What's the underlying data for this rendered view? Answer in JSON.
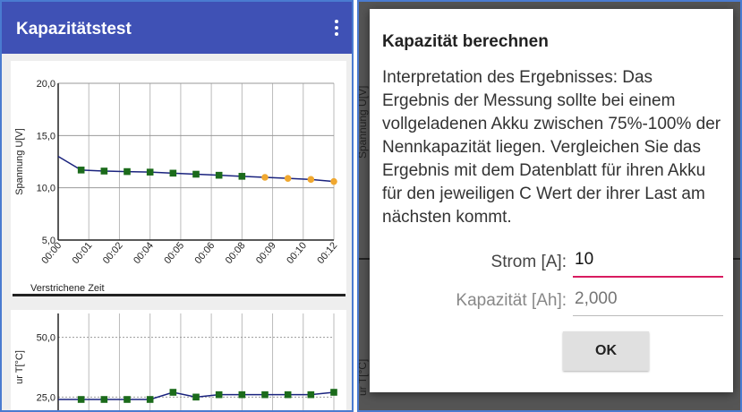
{
  "app": {
    "title": "Kapazitätstest",
    "menu_icon": "more-vert-icon"
  },
  "chart_data": [
    {
      "type": "line",
      "title": "",
      "xlabel": "Verstrichene Zeit",
      "ylabel": "Spannung U[V]",
      "ylim": [
        5,
        20
      ],
      "yticks": [
        "20,0",
        "15,0",
        "10,0",
        "5,0"
      ],
      "categories": [
        "00:00",
        "00:01",
        "00:02",
        "00:04",
        "00:05",
        "00:06",
        "00:08",
        "00:09",
        "00:10",
        "00:12"
      ],
      "x": [
        0,
        0.75,
        1.5,
        2.25,
        3.0,
        3.75,
        4.5,
        5.25,
        6.0,
        6.75,
        7.5,
        8.25,
        9.0
      ],
      "y": [
        13.0,
        11.7,
        11.6,
        11.55,
        11.5,
        11.4,
        11.3,
        11.2,
        11.1,
        11.0,
        10.9,
        10.8,
        10.6
      ],
      "point_colors": [
        "none",
        "#1b6b1b",
        "#1b6b1b",
        "#1b6b1b",
        "#1b6b1b",
        "#1b6b1b",
        "#1b6b1b",
        "#1b6b1b",
        "#1b6b1b",
        "#f0a830",
        "#f0a830",
        "#f0a830",
        "#f0a830"
      ],
      "line_color": "#1a237e",
      "grid": true
    },
    {
      "type": "line",
      "title": "",
      "xlabel": "",
      "ylabel": "ur T[°C]",
      "ylim": [
        15,
        60
      ],
      "yticks": [
        "50,0",
        "25,0"
      ],
      "x": [
        0,
        0.75,
        1.5,
        2.25,
        3.0,
        3.75,
        4.5,
        5.25,
        6.0,
        6.75,
        7.5,
        8.25,
        9.0
      ],
      "y": [
        24,
        24,
        24,
        24,
        24,
        27,
        25,
        26,
        26,
        26,
        26,
        26,
        27
      ],
      "point_colors": [
        "none",
        "#1b6b1b",
        "#1b6b1b",
        "#1b6b1b",
        "#1b6b1b",
        "#1b6b1b",
        "#1b6b1b",
        "#1b6b1b",
        "#1b6b1b",
        "#1b6b1b",
        "#1b6b1b",
        "#1b6b1b",
        "#1b6b1b"
      ],
      "line_color": "#1a237e",
      "grid": true
    }
  ],
  "background": {
    "ylabel": "Spannung U[V]",
    "ylabel2": "ur T[°C]"
  },
  "dialog": {
    "title": "Kapazität berechnen",
    "message": "Interpretation des Ergebnisses: Das Ergebnis der Messung sollte bei einem vollgeladenen Akku zwischen 75%-100% der Nennkapazität liegen. Vergleichen Sie das Ergebnis mit dem Datenblatt für ihren Akku für den jeweiligen C Wert der ihrer Last am nächsten kommt.",
    "strom_label": "Strom [A]:",
    "strom_value": "10",
    "kap_label": "Kapazität [Ah]:",
    "kap_placeholder": "2,000",
    "ok_label": "OK"
  }
}
